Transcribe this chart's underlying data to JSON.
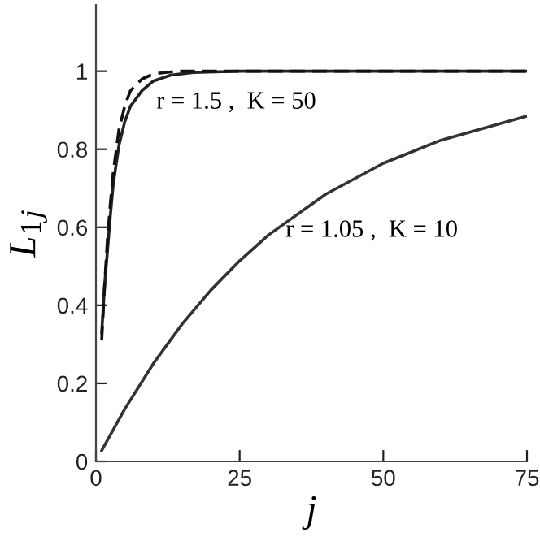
{
  "chart_data": {
    "type": "line",
    "xlabel": "j",
    "ylabel": "L$_{1j}$",
    "xlim": [
      0,
      75
    ],
    "ylim": [
      0,
      1.17
    ],
    "xticks": [
      0,
      25,
      50,
      75
    ],
    "yticks": [
      0,
      0.2,
      0.4,
      0.6,
      0.8,
      1
    ],
    "grid": false,
    "legend": false,
    "marker": "none",
    "series": [
      {
        "color": "#222222",
        "line_style": "solid",
        "x": [
          1,
          1.5,
          2,
          2.5,
          3,
          4,
          5,
          6,
          8,
          10,
          13,
          17,
          25,
          75
        ],
        "values": [
          0.33,
          0.45,
          0.54,
          0.63,
          0.71,
          0.81,
          0.87,
          0.91,
          0.95,
          0.975,
          0.99,
          0.997,
          1,
          1
        ]
      },
      {
        "color": "#111111",
        "line_style": "dashed",
        "x": [
          1,
          1.5,
          2,
          2.5,
          3,
          4,
          5,
          6,
          8,
          10,
          14,
          75
        ],
        "values": [
          0.31,
          0.45,
          0.57,
          0.66,
          0.74,
          0.85,
          0.91,
          0.95,
          0.98,
          0.993,
          1,
          1
        ]
      },
      {
        "color": "#333333",
        "line_style": "solid",
        "x": [
          1,
          5,
          10,
          15,
          20,
          25,
          30,
          40,
          50,
          60,
          75
        ],
        "values": [
          0.028,
          0.134,
          0.251,
          0.352,
          0.439,
          0.514,
          0.58,
          0.685,
          0.764,
          0.823,
          0.885
        ]
      }
    ],
    "annotations": [
      "r = 1.5 ,  K = 50",
      "r = 1.05 ,  K = 10"
    ]
  }
}
